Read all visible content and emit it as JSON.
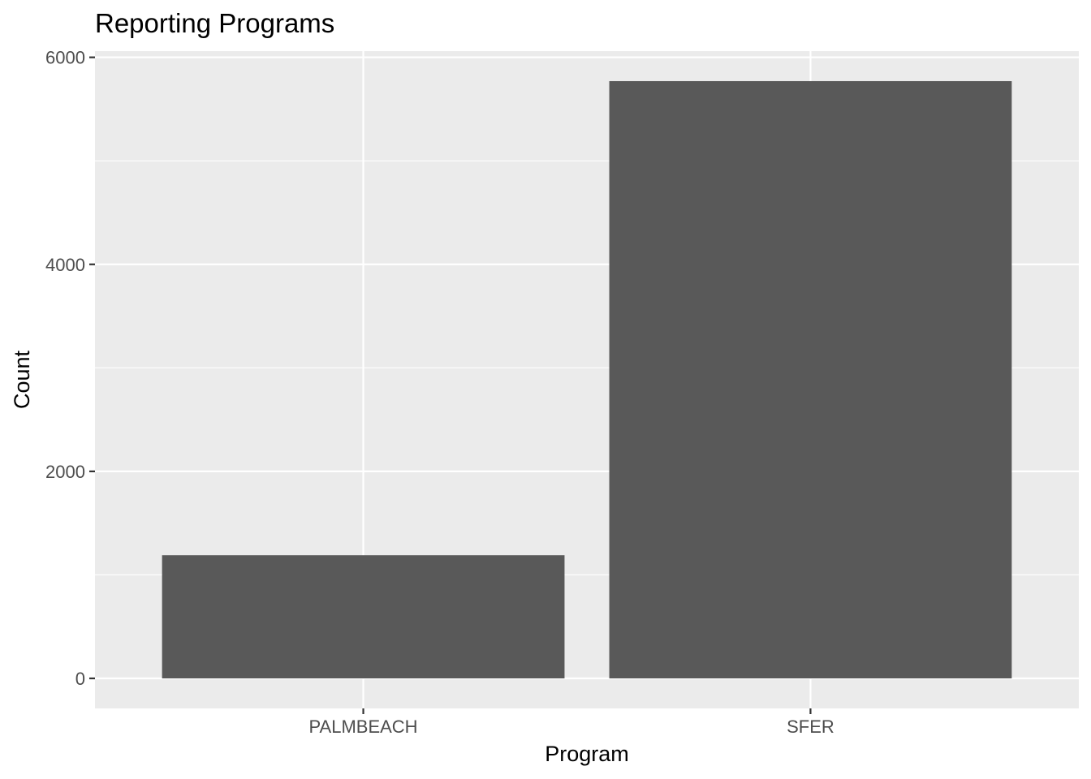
{
  "chart_data": {
    "type": "bar",
    "title": "Reporting Programs",
    "xlabel": "Program",
    "ylabel": "Count",
    "categories": [
      "PALMBEACH",
      "SFER"
    ],
    "values": [
      1190,
      5770
    ],
    "ylim": [
      -290,
      6060
    ],
    "yticks": [
      0,
      2000,
      4000,
      6000
    ],
    "ytick_labels": [
      "0",
      "2000",
      "4000",
      "6000"
    ],
    "grid": true,
    "legend": "none",
    "colors": {
      "panel": "#ebebeb",
      "grid": "#ffffff",
      "bar": "#595959",
      "tick": "#333333",
      "tick_label": "#4d4d4d"
    }
  }
}
